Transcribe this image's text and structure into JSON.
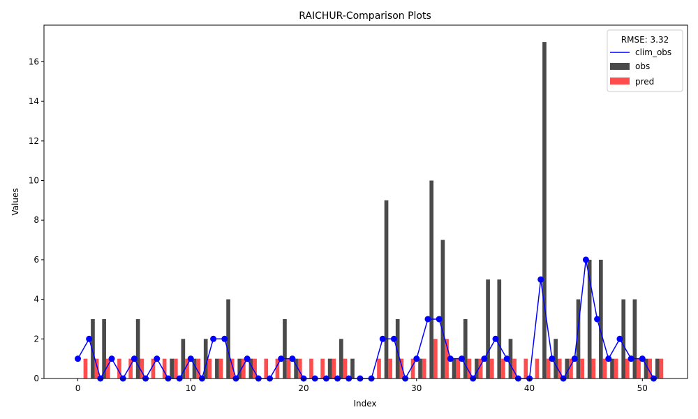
{
  "chart_data": {
    "type": "bar",
    "title": "RAICHUR-Comparison Plots",
    "xlabel": "Index",
    "ylabel": "Values",
    "xlim": [
      -3,
      54
    ],
    "ylim": [
      0,
      17.85
    ],
    "xticks": [
      0,
      10,
      20,
      30,
      40,
      50
    ],
    "yticks": [
      0,
      2,
      4,
      6,
      8,
      10,
      12,
      14,
      16
    ],
    "grid": false,
    "legend": {
      "title": "RMSE: 3.32",
      "placement": "top-right",
      "entries": [
        "clim_obs",
        "obs",
        "pred"
      ]
    },
    "x": [
      0,
      1,
      2,
      3,
      4,
      5,
      6,
      7,
      8,
      9,
      10,
      11,
      12,
      13,
      14,
      15,
      16,
      17,
      18,
      19,
      20,
      21,
      22,
      23,
      24,
      25,
      26,
      27,
      28,
      29,
      30,
      31,
      32,
      33,
      34,
      35,
      36,
      37,
      38,
      39,
      40,
      41,
      42,
      43,
      44,
      45,
      46,
      47,
      48,
      49,
      50,
      51
    ],
    "series": [
      {
        "name": "obs",
        "type": "bar",
        "color": "#4a4a4a",
        "values": [
          0,
          3,
          3,
          0,
          0,
          3,
          0,
          0,
          1,
          2,
          1,
          2,
          1,
          4,
          1,
          1,
          0,
          0,
          3,
          1,
          0,
          0,
          1,
          2,
          1,
          0,
          0,
          9,
          3,
          0,
          1,
          10,
          7,
          1,
          3,
          1,
          5,
          5,
          2,
          0,
          0,
          17,
          2,
          1,
          4,
          6,
          6,
          1,
          4,
          4,
          1,
          1
        ]
      },
      {
        "name": "pred",
        "type": "bar",
        "color": "#ff4d4d",
        "values": [
          1,
          1,
          1,
          1,
          1,
          1,
          1,
          1,
          1,
          1,
          1,
          1,
          1,
          1,
          1,
          1,
          1,
          1,
          1,
          1,
          1,
          1,
          1,
          1,
          0,
          0,
          1,
          1,
          1,
          1,
          1,
          2,
          2,
          1,
          1,
          1,
          1,
          1,
          1,
          1,
          1,
          1,
          1,
          1,
          1,
          1,
          1,
          1,
          1,
          1,
          1,
          1
        ]
      },
      {
        "name": "clim_obs",
        "type": "line",
        "color": "#0000ff",
        "values": [
          1,
          2,
          0,
          1,
          0,
          1,
          0,
          1,
          0,
          0,
          1,
          0,
          2,
          2,
          0,
          1,
          0,
          0,
          1,
          1,
          0,
          0,
          0,
          0,
          0,
          0,
          0,
          2,
          2,
          0,
          1,
          3,
          3,
          1,
          1,
          0,
          1,
          2,
          1,
          0,
          0,
          5,
          1,
          0,
          1,
          6,
          3,
          1,
          2,
          1,
          1,
          0
        ]
      }
    ]
  }
}
